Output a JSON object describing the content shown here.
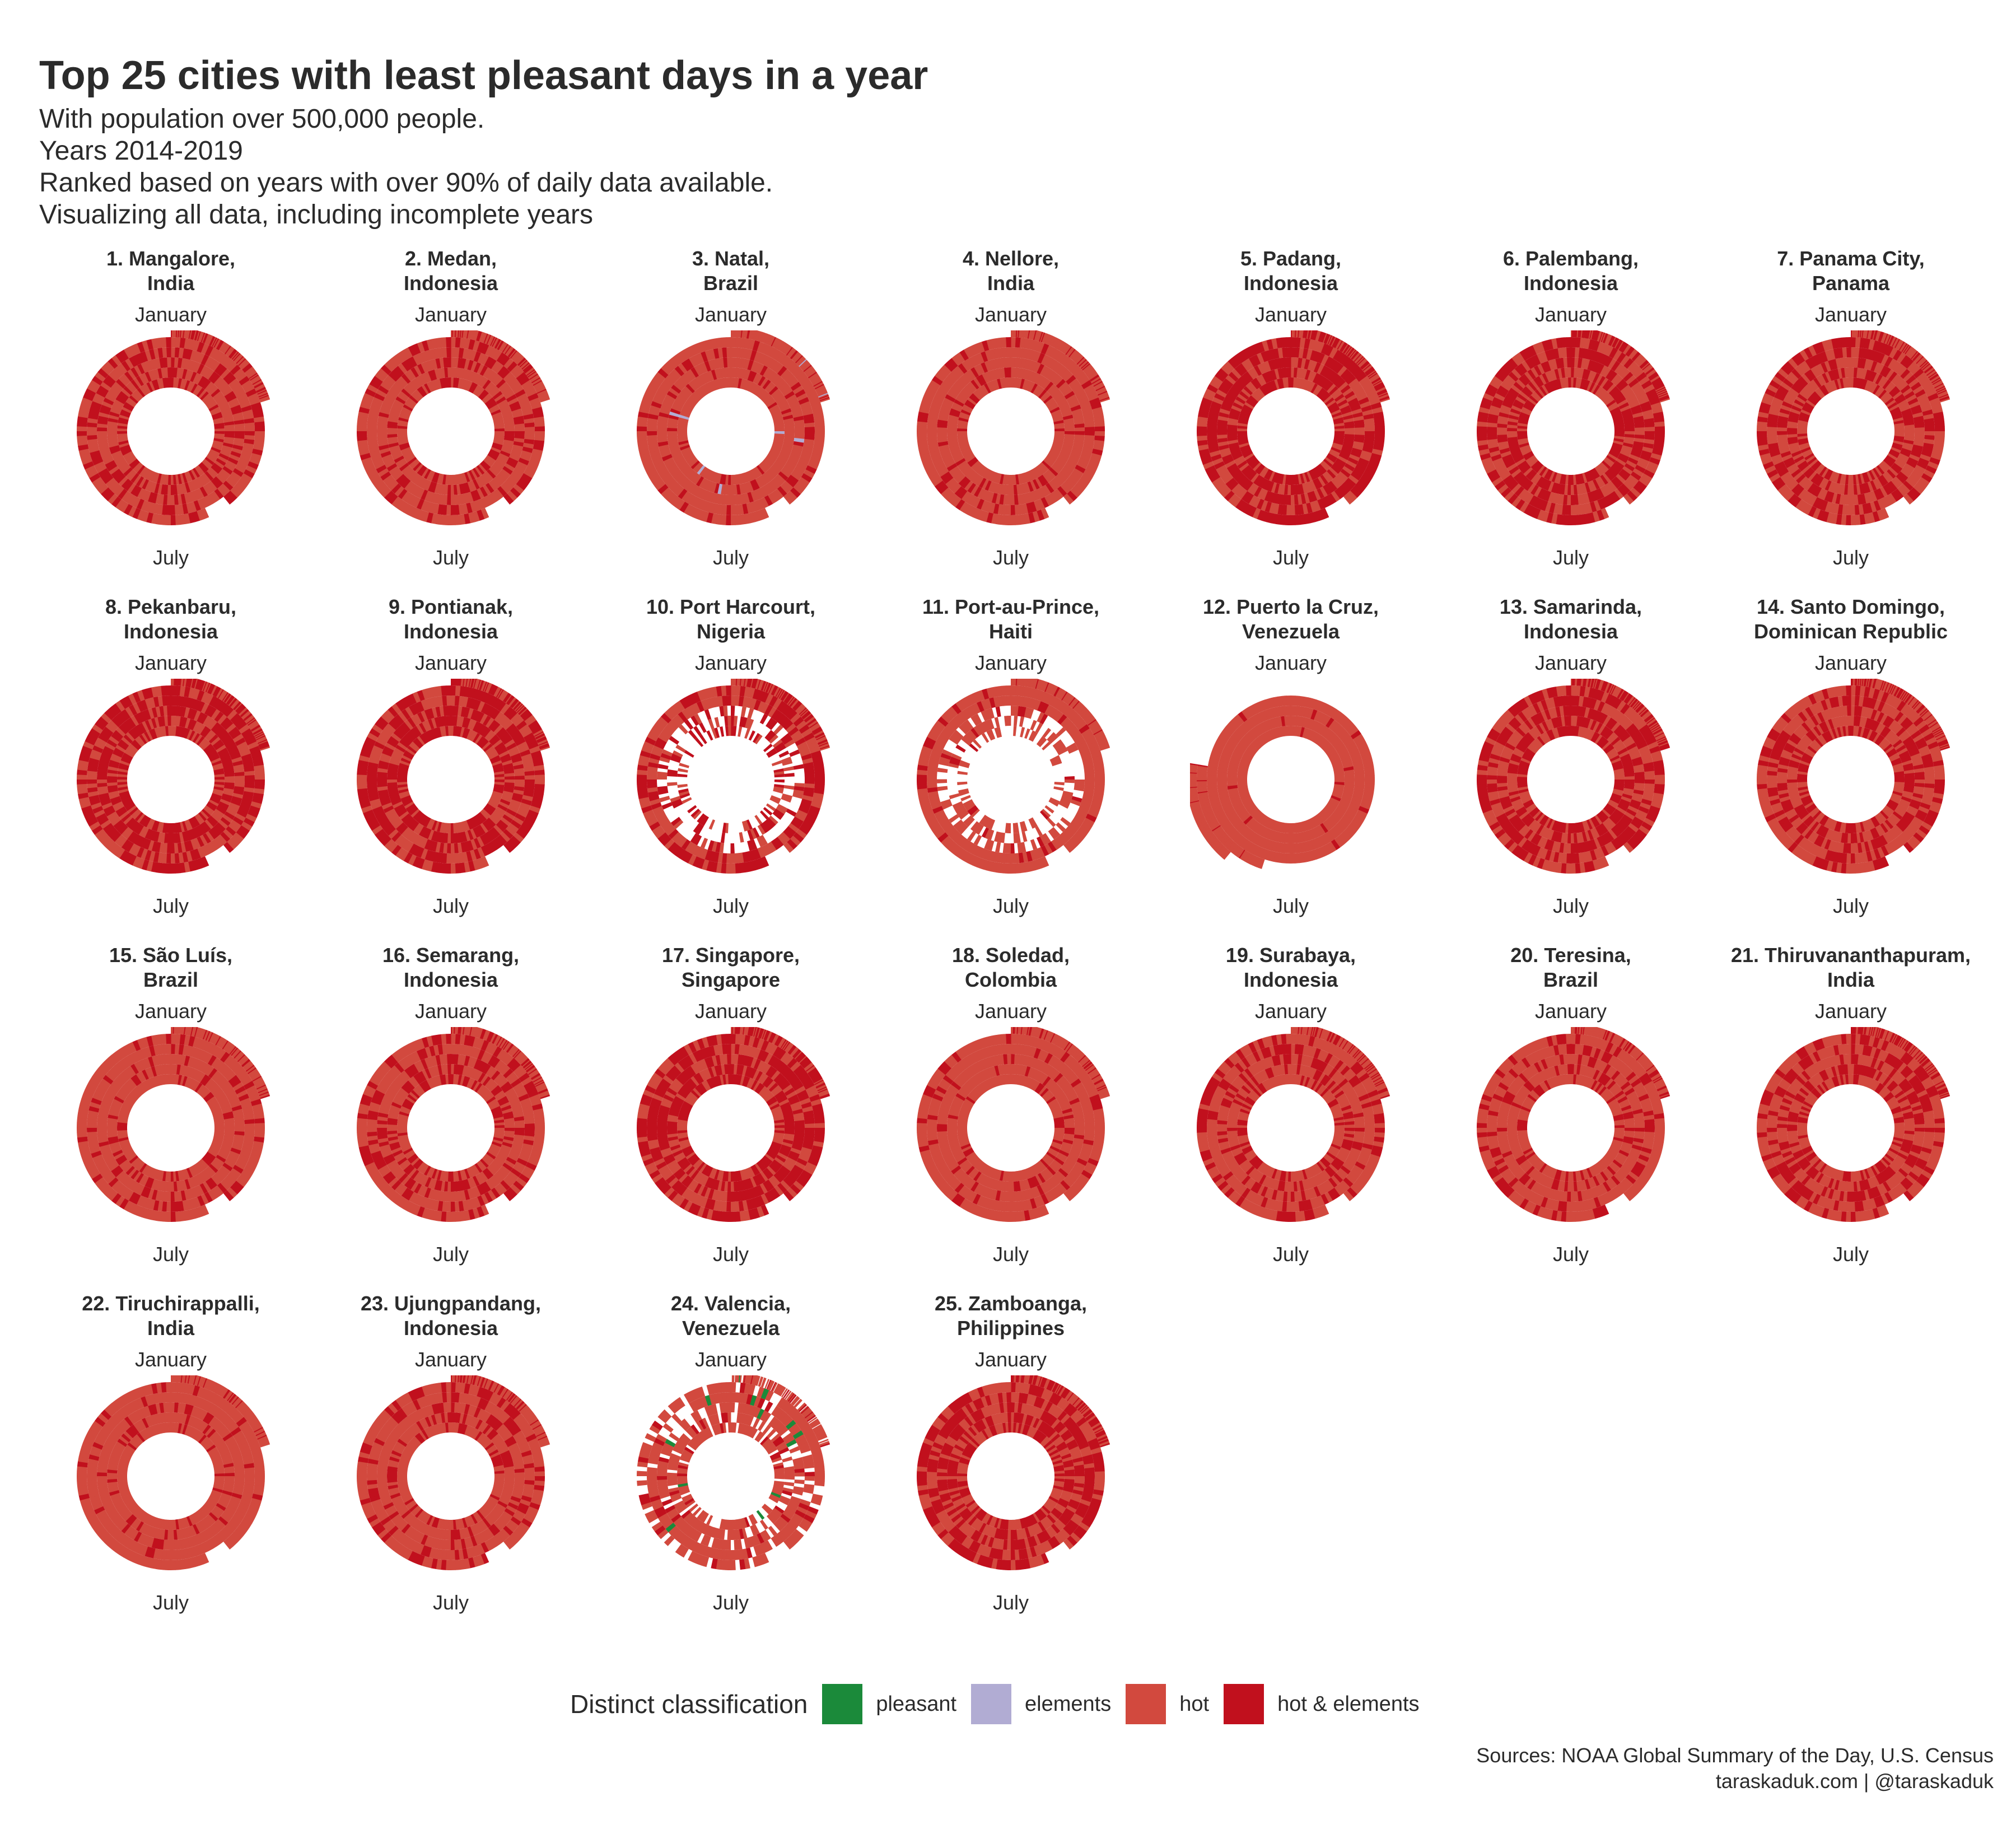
{
  "header": {
    "title": "Top 25 cities with least pleasant days in a year",
    "subtitle_lines": [
      "With population over 500,000 people.",
      "Years 2014-2019",
      "Ranked based on years with over 90% of daily data available.",
      "Visualizing all data, including incomplete years"
    ]
  },
  "chart_data": {
    "type": "radial",
    "top_label": "January",
    "bottom_label": "July",
    "legend": {
      "title": "Distinct classification",
      "items": [
        {
          "key": "pleasant",
          "label": "pleasant",
          "color": "#1b8a3a"
        },
        {
          "key": "elements",
          "label": "elements",
          "color": "#b1acd3"
        },
        {
          "key": "hot",
          "label": "hot",
          "color": "#d2493e"
        },
        {
          "key": "hot_elements",
          "label": "hot & elements",
          "color": "#c1101d"
        }
      ]
    },
    "panels": [
      {
        "rank": 1,
        "city": "1. Mangalore,",
        "country": "India",
        "share_hot_elements": 0.34,
        "pattern": "full",
        "dominant": "hot"
      },
      {
        "rank": 2,
        "city": "2. Medan,",
        "country": "Indonesia",
        "share_hot_elements": 0.28,
        "pattern": "full",
        "dominant": "hot"
      },
      {
        "rank": 3,
        "city": "3. Natal,",
        "country": "Brazil",
        "share_hot_elements": 0.12,
        "pattern": "full",
        "dominant": "hot"
      },
      {
        "rank": 4,
        "city": "4. Nellore,",
        "country": "India",
        "share_hot_elements": 0.15,
        "pattern": "full",
        "dominant": "hot"
      },
      {
        "rank": 5,
        "city": "5. Padang,",
        "country": "Indonesia",
        "share_hot_elements": 0.62,
        "pattern": "full",
        "dominant": "hot & elements"
      },
      {
        "rank": 6,
        "city": "6. Palembang,",
        "country": "Indonesia",
        "share_hot_elements": 0.6,
        "pattern": "full",
        "dominant": "hot & elements"
      },
      {
        "rank": 7,
        "city": "7. Panama City,",
        "country": "Panama",
        "share_hot_elements": 0.45,
        "pattern": "full",
        "dominant": "hot & elements"
      },
      {
        "rank": 8,
        "city": "8. Pekanbaru,",
        "country": "Indonesia",
        "share_hot_elements": 0.58,
        "pattern": "full",
        "dominant": "hot & elements"
      },
      {
        "rank": 9,
        "city": "9. Pontianak,",
        "country": "Indonesia",
        "share_hot_elements": 0.6,
        "pattern": "full",
        "dominant": "hot & elements"
      },
      {
        "rank": 10,
        "city": "10. Port Harcourt,",
        "country": "Nigeria",
        "share_hot_elements": 0.55,
        "pattern": "sparse",
        "dominant": "hot & elements"
      },
      {
        "rank": 11,
        "city": "11. Port-au-Prince,",
        "country": "Haiti",
        "share_hot_elements": 0.08,
        "pattern": "sparse",
        "dominant": "hot"
      },
      {
        "rank": 12,
        "city": "12. Puerto la Cruz,",
        "country": "Venezuela",
        "share_hot_elements": 0.03,
        "pattern": "partial",
        "dominant": "hot"
      },
      {
        "rank": 13,
        "city": "13. Samarinda,",
        "country": "Indonesia",
        "share_hot_elements": 0.55,
        "pattern": "full",
        "dominant": "hot & elements"
      },
      {
        "rank": 14,
        "city": "14. Santo Domingo,",
        "country": "Dominican Republic",
        "share_hot_elements": 0.42,
        "pattern": "full",
        "dominant": "hot & elements"
      },
      {
        "rank": 15,
        "city": "15. São Luís,",
        "country": "Brazil",
        "share_hot_elements": 0.18,
        "pattern": "full",
        "dominant": "hot"
      },
      {
        "rank": 16,
        "city": "16. Semarang,",
        "country": "Indonesia",
        "share_hot_elements": 0.35,
        "pattern": "full",
        "dominant": "hot"
      },
      {
        "rank": 17,
        "city": "17. Singapore,",
        "country": "Singapore",
        "share_hot_elements": 0.6,
        "pattern": "full",
        "dominant": "hot & elements"
      },
      {
        "rank": 18,
        "city": "18. Soledad,",
        "country": "Colombia",
        "share_hot_elements": 0.15,
        "pattern": "full",
        "dominant": "hot"
      },
      {
        "rank": 19,
        "city": "19. Surabaya,",
        "country": "Indonesia",
        "share_hot_elements": 0.3,
        "pattern": "full",
        "dominant": "hot"
      },
      {
        "rank": 20,
        "city": "20. Teresina,",
        "country": "Brazil",
        "share_hot_elements": 0.25,
        "pattern": "full",
        "dominant": "hot"
      },
      {
        "rank": 21,
        "city": "21. Thiruvananthapuram,",
        "country": "India",
        "share_hot_elements": 0.42,
        "pattern": "full",
        "dominant": "hot & elements"
      },
      {
        "rank": 22,
        "city": "22. Tiruchirappalli,",
        "country": "India",
        "share_hot_elements": 0.12,
        "pattern": "full",
        "dominant": "hot"
      },
      {
        "rank": 23,
        "city": "23. Ujungpandang,",
        "country": "Indonesia",
        "share_hot_elements": 0.3,
        "pattern": "full",
        "dominant": "hot"
      },
      {
        "rank": 24,
        "city": "24. Valencia,",
        "country": "Venezuela",
        "share_hot_elements": 0.1,
        "pattern": "gappy",
        "dominant": "hot"
      },
      {
        "rank": 25,
        "city": "25. Zamboanga,",
        "country": "Philippines",
        "share_hot_elements": 0.55,
        "pattern": "full",
        "dominant": "hot & elements"
      }
    ]
  },
  "footer": {
    "sources": "Sources: NOAA Global Summary of the Day, U.S. Census",
    "credit": "taraskaduk.com | @taraskaduk"
  }
}
